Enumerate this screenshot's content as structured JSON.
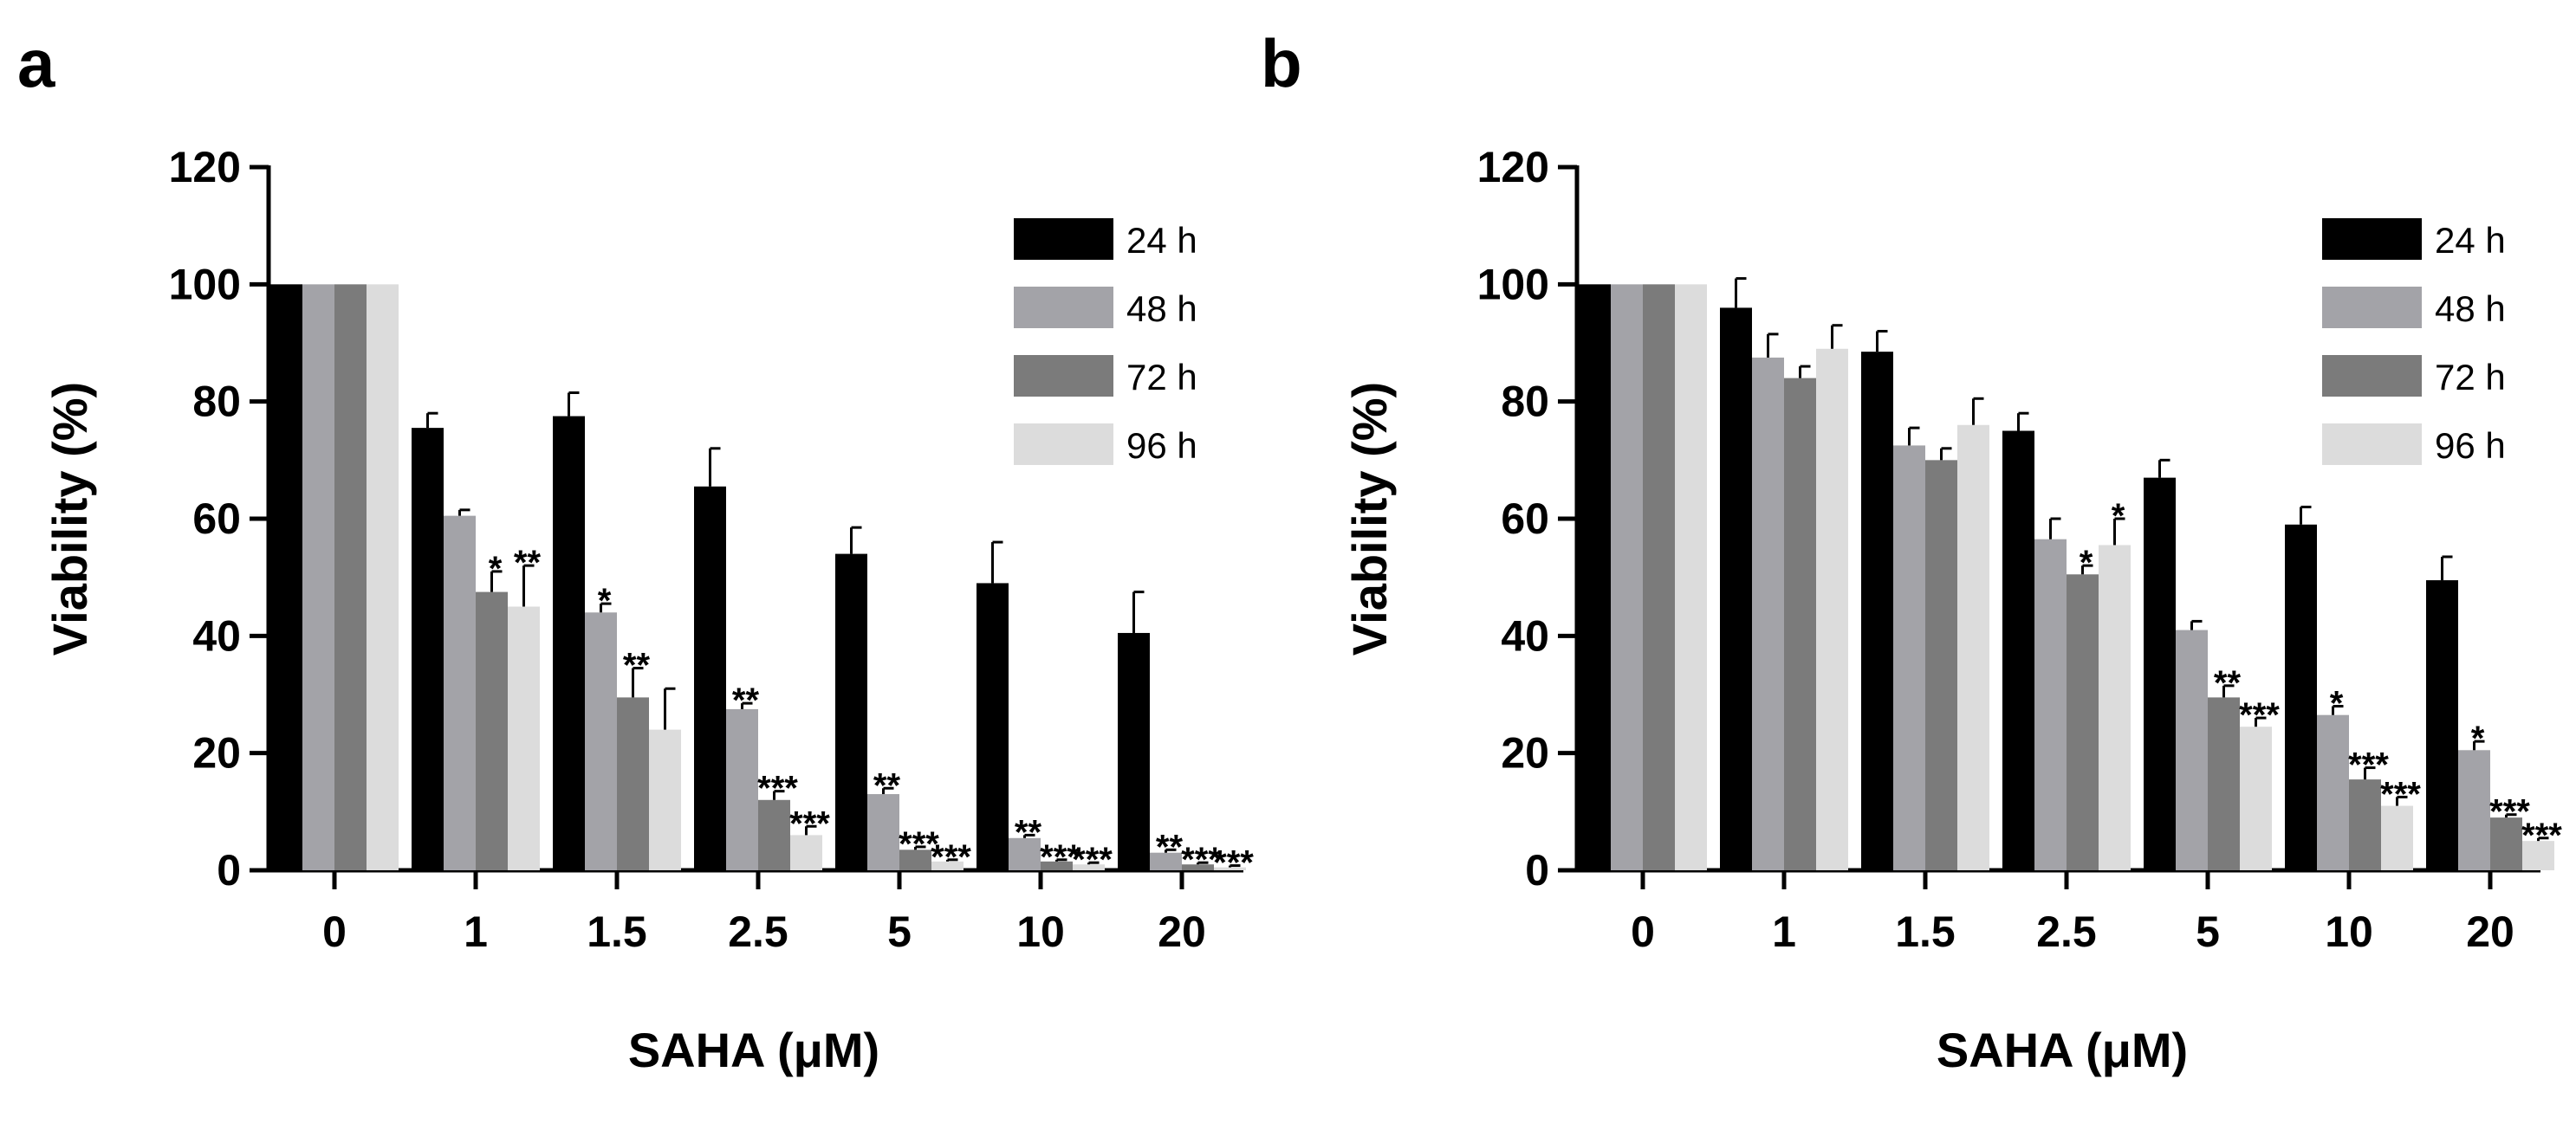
{
  "chart_data": [
    {
      "type": "bar",
      "panel_label": "a",
      "xlabel": "SAHA (μM)",
      "ylabel": "Viability (%)",
      "ylim": [
        0,
        120
      ],
      "yticks": [
        "0",
        "20",
        "40",
        "60",
        "80",
        "100",
        "120"
      ],
      "categories": [
        "0",
        "1",
        "1.5",
        "2.5",
        "5",
        "10",
        "20"
      ],
      "legend_position": "top-right",
      "series": [
        {
          "name": "24 h",
          "color": "#000000",
          "values": [
            100,
            75.5,
            77.5,
            65.5,
            54,
            49,
            40.5
          ],
          "errors": [
            0,
            2.5,
            4,
            6.5,
            4.5,
            7,
            7
          ],
          "sig": [
            "",
            "",
            "",
            "",
            "",
            "",
            ""
          ]
        },
        {
          "name": "48 h",
          "color": "#a3a3a8",
          "values": [
            100,
            60.5,
            44,
            27.5,
            13,
            5.5,
            3
          ],
          "errors": [
            0,
            1,
            1.5,
            1,
            1,
            0.5,
            0.5
          ],
          "sig": [
            "",
            "",
            "*",
            "**",
            "**",
            "**",
            "**"
          ]
        },
        {
          "name": "72 h",
          "color": "#7b7b7b",
          "values": [
            100,
            47.5,
            29.5,
            12,
            3.5,
            1.5,
            1
          ],
          "errors": [
            0,
            3.5,
            5,
            1.5,
            0.5,
            0.3,
            0.3
          ],
          "sig": [
            "",
            "*",
            "**",
            "***",
            "***",
            "***",
            "***"
          ]
        },
        {
          "name": "96 h",
          "color": "#dcdcdc",
          "values": [
            100,
            45,
            24,
            6,
            1.5,
            1,
            0.5
          ],
          "errors": [
            0,
            7,
            7,
            1.5,
            0.3,
            0.3,
            0.3
          ],
          "sig": [
            "",
            "**",
            "",
            "***",
            "***",
            "***",
            "***"
          ]
        }
      ]
    },
    {
      "type": "bar",
      "panel_label": "b",
      "xlabel": "SAHA (μM)",
      "ylabel": "Viability (%)",
      "ylim": [
        0,
        120
      ],
      "yticks": [
        "0",
        "20",
        "40",
        "60",
        "80",
        "100",
        "120"
      ],
      "categories": [
        "0",
        "1",
        "1.5",
        "2.5",
        "5",
        "10",
        "20"
      ],
      "legend_position": "top-right",
      "series": [
        {
          "name": "24 h",
          "color": "#000000",
          "values": [
            100,
            96,
            88.5,
            75,
            67,
            59,
            49.5
          ],
          "errors": [
            0,
            5,
            3.5,
            3,
            3,
            3,
            4
          ],
          "sig": [
            "",
            "",
            "",
            "",
            "",
            "",
            ""
          ]
        },
        {
          "name": "48 h",
          "color": "#a3a3a8",
          "values": [
            100,
            87.5,
            72.5,
            56.5,
            41,
            26.5,
            20.5
          ],
          "errors": [
            0,
            4,
            3,
            3.5,
            1.5,
            1.5,
            1.5
          ],
          "sig": [
            "",
            "",
            "",
            "",
            "",
            "*",
            "*"
          ]
        },
        {
          "name": "72 h",
          "color": "#7b7b7b",
          "values": [
            100,
            84,
            70,
            50.5,
            29.5,
            15.5,
            9
          ],
          "errors": [
            0,
            2,
            2,
            1.5,
            2,
            2,
            0.5
          ],
          "sig": [
            "",
            "",
            "",
            "*",
            "**",
            "***",
            "***"
          ]
        },
        {
          "name": "96 h",
          "color": "#dcdcdc",
          "values": [
            100,
            89,
            76,
            55.5,
            24.5,
            11,
            5
          ],
          "errors": [
            0,
            4,
            4.5,
            4.5,
            1.5,
            1.5,
            0.5
          ],
          "sig": [
            "",
            "",
            "",
            "*",
            "***",
            "***",
            "***"
          ]
        }
      ]
    }
  ]
}
